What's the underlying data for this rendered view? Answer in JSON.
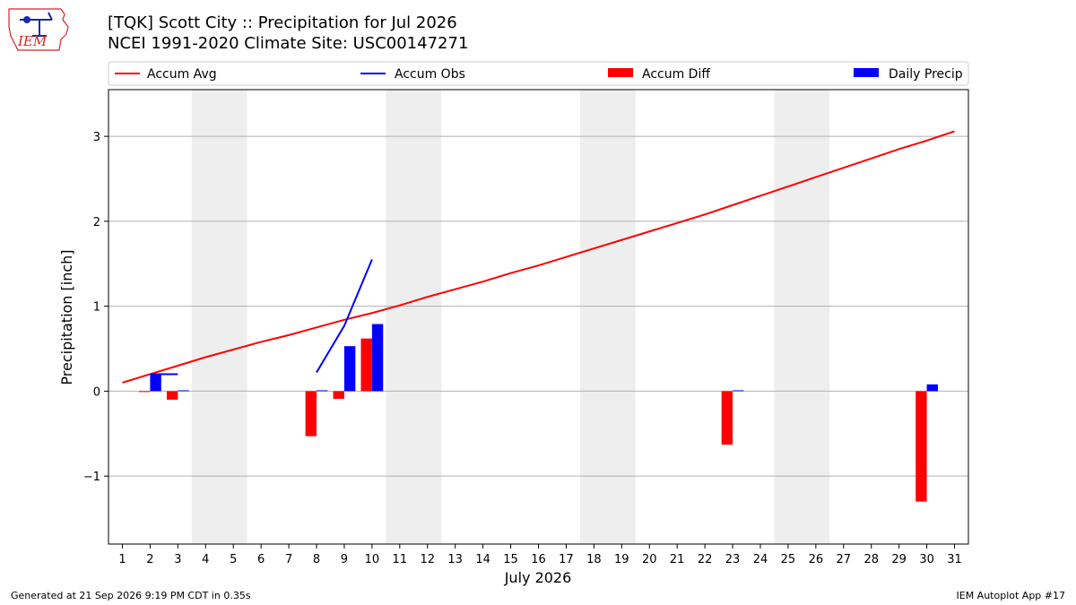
{
  "header": {
    "title": "[TQK] Scott City :: Precipitation for Jul 2026",
    "subtitle": "NCEI 1991-2020 Climate Site: USC00147271"
  },
  "logo": {
    "text": "IEM"
  },
  "footer": {
    "left": "Generated at 21 Sep 2026 9:19 PM CDT in 0.35s",
    "right": "IEM Autoplot App #17"
  },
  "colors": {
    "accum_avg": "#ff0000",
    "accum_obs": "#0000ff",
    "accum_diff": "#ff0000",
    "daily_precip": "#0000ff",
    "weekend_shade": "#eeeeee",
    "grid": "#b0b0b0"
  },
  "chart_data": {
    "type": "bar",
    "xlabel": "July 2026",
    "ylabel": "Precipitation [inch]",
    "xlim": [
      0.5,
      31.5
    ],
    "ylim": [
      -1.8,
      3.55
    ],
    "x": [
      1,
      2,
      3,
      4,
      5,
      6,
      7,
      8,
      9,
      10,
      11,
      12,
      13,
      14,
      15,
      16,
      17,
      18,
      19,
      20,
      21,
      22,
      23,
      24,
      25,
      26,
      27,
      28,
      29,
      30,
      31
    ],
    "x_tick_labels": [
      "1",
      "2",
      "3",
      "4",
      "5",
      "6",
      "7",
      "8",
      "9",
      "10",
      "11",
      "12",
      "13",
      "14",
      "15",
      "16",
      "17",
      "18",
      "19",
      "20",
      "21",
      "22",
      "23",
      "24",
      "25",
      "26",
      "27",
      "28",
      "29",
      "30",
      "31"
    ],
    "y_ticks": [
      -1,
      0,
      1,
      2,
      3
    ],
    "y_tick_labels": [
      "−1",
      "0",
      "1",
      "2",
      "3"
    ],
    "grid": "horizontal",
    "legend_placement": "top",
    "legend": [
      {
        "name": "Accum Avg",
        "kind": "line",
        "color": "#ff0000"
      },
      {
        "name": "Accum Obs",
        "kind": "line",
        "color": "#0000ff"
      },
      {
        "name": "Accum Diff",
        "kind": "bar",
        "color": "#ff0000"
      },
      {
        "name": "Daily Precip",
        "kind": "bar",
        "color": "#0000ff"
      }
    ],
    "shaded_periods": [
      [
        3.5,
        5.5
      ],
      [
        10.5,
        12.5
      ],
      [
        17.5,
        19.5
      ],
      [
        24.5,
        26.5
      ]
    ],
    "series": [
      {
        "name": "Accum Avg",
        "type": "line",
        "color": "#ff0000",
        "x": [
          1,
          2,
          3,
          4,
          5,
          6,
          7,
          8,
          9,
          10,
          11,
          12,
          13,
          14,
          15,
          16,
          17,
          18,
          19,
          20,
          21,
          22,
          23,
          24,
          25,
          26,
          27,
          28,
          29,
          30,
          31
        ],
        "values": [
          0.1,
          0.2,
          0.3,
          0.4,
          0.49,
          0.58,
          0.66,
          0.75,
          0.84,
          0.92,
          1.01,
          1.11,
          1.2,
          1.29,
          1.39,
          1.48,
          1.58,
          1.68,
          1.78,
          1.88,
          1.98,
          2.08,
          2.19,
          2.3,
          2.41,
          2.52,
          2.63,
          2.74,
          2.85,
          2.95,
          3.06
        ]
      },
      {
        "name": "Accum Obs",
        "type": "line",
        "color": "#0000ff",
        "segments": [
          {
            "x": [
              2,
              3
            ],
            "values": [
              0.2,
              0.2
            ]
          },
          {
            "x": [
              8,
              9,
              10
            ],
            "values": [
              0.22,
              0.77,
              1.55
            ]
          }
        ]
      },
      {
        "name": "Accum Diff",
        "type": "bar",
        "color": "#ff0000",
        "offset": -0.2,
        "x": [
          2,
          3,
          8,
          9,
          10,
          23,
          30
        ],
        "values": [
          -0.01,
          -0.1,
          -0.53,
          -0.09,
          0.62,
          -0.63,
          -1.3
        ]
      },
      {
        "name": "Daily Precip",
        "type": "bar",
        "color": "#0000ff",
        "offset": 0.2,
        "x": [
          2,
          3,
          8,
          9,
          10,
          23,
          30
        ],
        "values": [
          0.2,
          0.01,
          0.01,
          0.53,
          0.79,
          0.01,
          0.08
        ]
      }
    ]
  }
}
